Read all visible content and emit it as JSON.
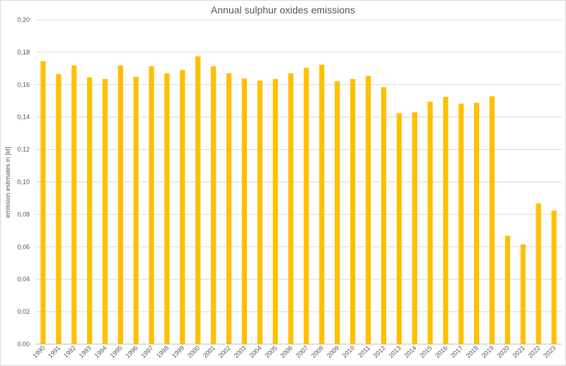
{
  "chart_data": {
    "type": "bar",
    "title": "Annual sulphur oxides emissions",
    "xlabel": "",
    "ylabel": "emission estimates in [kt]",
    "ylim": [
      0,
      0.2
    ],
    "ytick_step": 0.02,
    "ytick_labels": [
      "0,00",
      "0,02",
      "0,04",
      "0,06",
      "0,08",
      "0,10",
      "0,12",
      "0,14",
      "0,16",
      "0,18",
      "0,20"
    ],
    "grid": true,
    "legend": "none",
    "bar_color": "#ffc000",
    "categories": [
      "1990",
      "1991",
      "1992",
      "1993",
      "1994",
      "1995",
      "1996",
      "1997",
      "1998",
      "1999",
      "2000",
      "2001",
      "2002",
      "2003",
      "2004",
      "2005",
      "2006",
      "2007",
      "2008",
      "2009",
      "2010",
      "2011",
      "2012",
      "2013",
      "2014",
      "2015",
      "2016",
      "2017",
      "2018",
      "2019",
      "2020",
      "2021",
      "2022",
      "2023"
    ],
    "values": [
      0.1745,
      0.1665,
      0.1718,
      0.1645,
      0.1635,
      0.1718,
      0.1648,
      0.1713,
      0.167,
      0.169,
      0.1775,
      0.1713,
      0.167,
      0.1638,
      0.1625,
      0.1635,
      0.167,
      0.1705,
      0.1723,
      0.162,
      0.1635,
      0.1653,
      0.1585,
      0.1423,
      0.143,
      0.1495,
      0.1525,
      0.1483,
      0.1488,
      0.1528,
      0.0668,
      0.0615,
      0.0868,
      0.0823
    ]
  }
}
